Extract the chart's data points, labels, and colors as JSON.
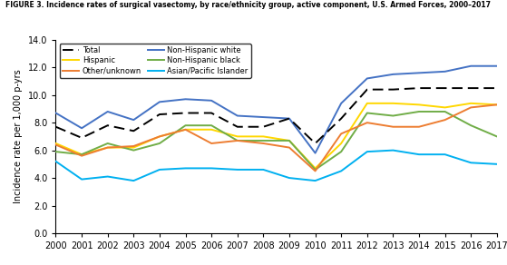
{
  "years": [
    2000,
    2001,
    2002,
    2003,
    2004,
    2005,
    2006,
    2007,
    2008,
    2009,
    2010,
    2011,
    2012,
    2013,
    2014,
    2015,
    2016,
    2017
  ],
  "total": [
    7.7,
    6.9,
    7.8,
    7.4,
    8.6,
    8.7,
    8.7,
    7.7,
    7.7,
    8.3,
    6.5,
    8.3,
    10.4,
    10.4,
    10.5,
    10.5,
    10.5,
    10.5
  ],
  "non_hispanic_white": [
    8.7,
    7.6,
    8.8,
    8.2,
    9.5,
    9.7,
    9.6,
    8.5,
    8.4,
    8.3,
    5.8,
    9.4,
    11.2,
    11.5,
    11.6,
    11.7,
    12.1,
    12.1
  ],
  "hispanic": [
    6.5,
    5.7,
    6.2,
    6.2,
    7.0,
    7.5,
    7.5,
    7.0,
    7.0,
    6.7,
    4.7,
    6.5,
    9.4,
    9.4,
    9.3,
    9.1,
    9.4,
    9.3
  ],
  "non_hispanic_black": [
    5.9,
    5.7,
    6.5,
    6.0,
    6.5,
    7.8,
    7.8,
    6.7,
    6.7,
    6.7,
    4.6,
    5.9,
    8.7,
    8.5,
    8.8,
    8.8,
    7.8,
    7.0
  ],
  "other_unknown": [
    6.4,
    5.6,
    6.2,
    6.3,
    7.0,
    7.5,
    6.5,
    6.7,
    6.5,
    6.2,
    4.5,
    7.2,
    8.0,
    7.7,
    7.7,
    8.2,
    9.1,
    9.3
  ],
  "asian_pacific": [
    5.2,
    3.9,
    4.1,
    3.8,
    4.6,
    4.7,
    4.7,
    4.6,
    4.6,
    4.0,
    3.8,
    4.5,
    5.9,
    6.0,
    5.7,
    5.7,
    5.1,
    5.0
  ],
  "title": "FIGURE 3. Incidence rates of surgical vasectomy, by race/ethnicity group, active component, U.S. Armed Forces, 2000–2017",
  "ylabel": "Incidence rate per 1,000 p-yrs",
  "ylim": [
    0.0,
    14.0
  ],
  "yticks": [
    0.0,
    2.0,
    4.0,
    6.0,
    8.0,
    10.0,
    12.0,
    14.0
  ],
  "colors": {
    "total": "#000000",
    "non_hispanic_white": "#4472C4",
    "hispanic": "#FFD700",
    "non_hispanic_black": "#70AD47",
    "other_unknown": "#ED7D31",
    "asian_pacific": "#00B0F0"
  }
}
